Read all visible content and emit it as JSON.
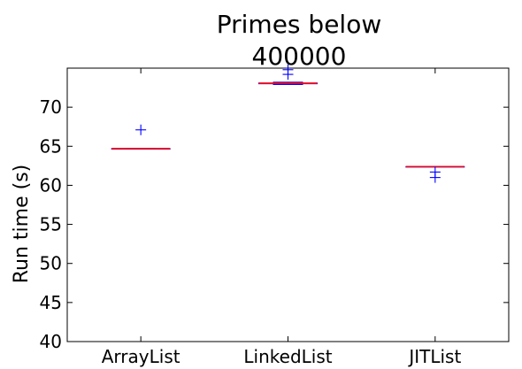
{
  "chart_data": {
    "type": "boxplot",
    "title_lines": [
      "Primes below",
      "400000"
    ],
    "xlabel": "",
    "ylabel": "Run time (s)",
    "categories": [
      "ArrayList",
      "LinkedList",
      "JITList"
    ],
    "ylim": [
      40,
      75
    ],
    "yticks": [
      40,
      45,
      50,
      55,
      60,
      65,
      70
    ],
    "grid": false,
    "colors": {
      "box": "#0000ff",
      "median": "#ff0000",
      "flier": "#0000ff",
      "axes": "#000000"
    },
    "series": [
      {
        "category": "ArrayList",
        "whisker_low": 64.7,
        "q1": 64.7,
        "median": 64.7,
        "q3": 64.7,
        "whisker_high": 64.7,
        "outliers": [
          67.1
        ]
      },
      {
        "category": "LinkedList",
        "whisker_low": 72.9,
        "q1": 73.0,
        "median": 73.05,
        "q3": 73.1,
        "whisker_high": 73.2,
        "outliers": [
          74.2,
          74.8
        ]
      },
      {
        "category": "JITList",
        "whisker_low": 62.4,
        "q1": 62.4,
        "median": 62.4,
        "q3": 62.4,
        "whisker_high": 62.4,
        "outliers": [
          61.7,
          61.0
        ]
      }
    ]
  }
}
